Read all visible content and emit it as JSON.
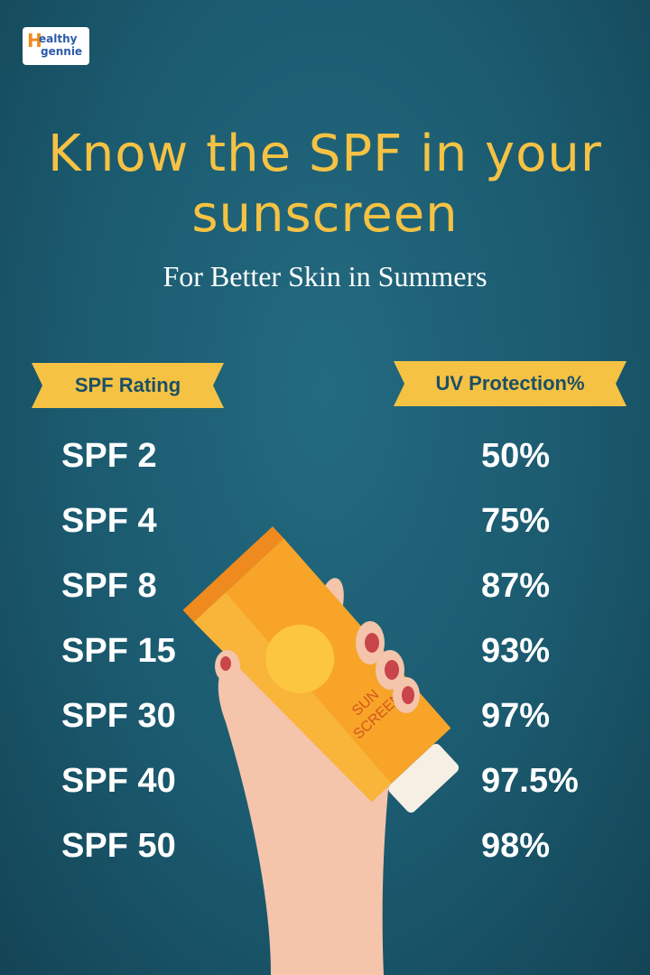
{
  "logo": {
    "mark": "H",
    "line1": "ealthy",
    "line2": "gennie"
  },
  "header": {
    "title_line1": "Know the SPF in your",
    "title_line2": "sunscreen",
    "subtitle": "For Better Skin in Summers"
  },
  "table": {
    "columns": [
      "SPF Rating",
      "UV Protection%"
    ],
    "rows": [
      [
        "SPF 2",
        "50%"
      ],
      [
        "SPF 4",
        "75%"
      ],
      [
        "SPF 8",
        "87%"
      ],
      [
        "SPF 15",
        "93%"
      ],
      [
        "SPF 30",
        "97%"
      ],
      [
        "SPF 40",
        "97.5%"
      ],
      [
        "SPF 50",
        "98%"
      ]
    ]
  },
  "illustration": {
    "tube_line1": "SUN",
    "tube_line2": "SCREEN"
  }
}
